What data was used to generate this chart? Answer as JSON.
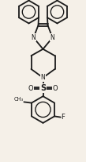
{
  "bg_color": "#f5f0e8",
  "line_color": "#1a1a1a",
  "lw": 1.3,
  "figsize": [
    1.09,
    2.04
  ],
  "dpi": 100,
  "xlim": [
    -0.75,
    0.75
  ],
  "ylim": [
    -1.85,
    1.55
  ]
}
